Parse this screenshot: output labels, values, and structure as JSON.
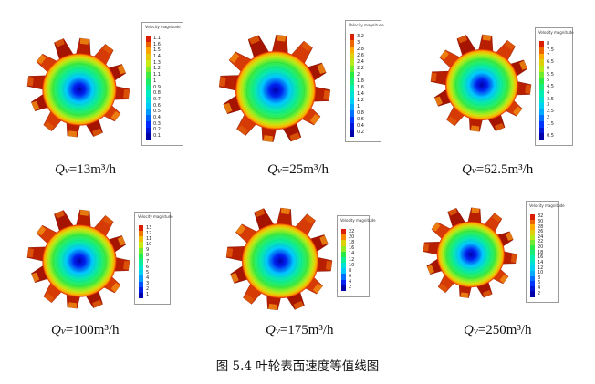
{
  "figure_caption": "图 5.4  叶轮表面速度等值线图",
  "panels": [
    {
      "caption_symbol": "Q",
      "caption_sub": "v",
      "caption_value": "=13m³/h",
      "legend_title": "Velocity magnitude",
      "legend_labels": [
        "1.1",
        "1.6",
        "1.5",
        "1.4",
        "1.3",
        "1.2",
        "1.1",
        "1",
        "0.9",
        "0.8",
        "0.7",
        "0.6",
        "0.5",
        "0.4",
        "0.3",
        "0.2",
        "0.1"
      ]
    },
    {
      "caption_symbol": "Q",
      "caption_sub": "v",
      "caption_value": "=25m³/h",
      "legend_title": "Velocity magnitude",
      "legend_labels": [
        "3.2",
        "3",
        "2.8",
        "2.6",
        "2.4",
        "2.2",
        "2",
        "1.8",
        "1.6",
        "1.4",
        "1.2",
        "1",
        "0.8",
        "0.6",
        "0.4",
        "0.2"
      ]
    },
    {
      "caption_symbol": "Q",
      "caption_sub": "v",
      "caption_value": "=62.5m³/h",
      "legend_title": "Velocity magnitude",
      "legend_labels": [
        "8",
        "7.5",
        "7",
        "6.5",
        "6",
        "5.5",
        "5",
        "4.5",
        "4",
        "3.5",
        "3",
        "2.5",
        "2",
        "1.5",
        "1",
        "0.5"
      ]
    },
    {
      "caption_symbol": "Q",
      "caption_sub": "v",
      "caption_value": "=100m³/h",
      "legend_title": "Velocity magnitude",
      "legend_labels": [
        "13",
        "12",
        "11",
        "10",
        "9",
        "8",
        "7",
        "6",
        "5",
        "4",
        "3",
        "2",
        "1"
      ]
    },
    {
      "caption_symbol": "Q",
      "caption_sub": "v",
      "caption_value": "=175m³/h",
      "legend_title": "Velocity magnitude",
      "legend_labels": [
        "22",
        "20",
        "18",
        "16",
        "14",
        "12",
        "10",
        "8",
        "6",
        "4",
        "2"
      ]
    },
    {
      "caption_symbol": "Q",
      "caption_sub": "v",
      "caption_value": "=250m³/h",
      "legend_title": "Velocity magnitude",
      "legend_labels": [
        "32",
        "30",
        "28",
        "26",
        "24",
        "22",
        "20",
        "18",
        "16",
        "14",
        "12",
        "10",
        "8",
        "6",
        "4",
        "2"
      ]
    }
  ]
}
